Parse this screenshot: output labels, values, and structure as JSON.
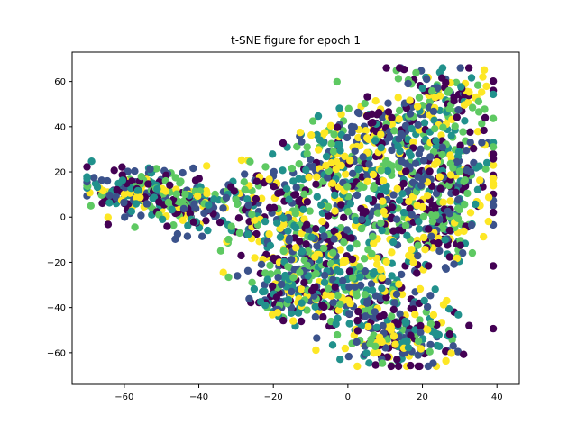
{
  "chart_data": {
    "type": "scatter",
    "title": "t-SNE figure for epoch 1",
    "xlabel": "",
    "ylabel": "",
    "xlim": [
      -74,
      46
    ],
    "ylim": [
      -74,
      73
    ],
    "xticks": [
      -60,
      -40,
      -20,
      0,
      20,
      40
    ],
    "yticks": [
      -60,
      -40,
      -20,
      0,
      20,
      40,
      60
    ],
    "grid": false,
    "colormap": [
      "#440154",
      "#3b528b",
      "#21918c",
      "#5ec962",
      "#fde725"
    ],
    "point_count": 2000,
    "clusters": [
      {
        "center": [
          -58,
          12
        ],
        "spread": [
          7,
          5
        ],
        "weight": 0.08
      },
      {
        "center": [
          -44,
          6
        ],
        "spread": [
          6,
          6
        ],
        "weight": 0.06
      },
      {
        "center": [
          -25,
          4
        ],
        "spread": [
          8,
          10
        ],
        "weight": 0.07
      },
      {
        "center": [
          -5,
          22
        ],
        "spread": [
          8,
          12
        ],
        "weight": 0.08
      },
      {
        "center": [
          10,
          35
        ],
        "spread": [
          8,
          8
        ],
        "weight": 0.07
      },
      {
        "center": [
          25,
          52
        ],
        "spread": [
          7,
          8
        ],
        "weight": 0.07
      },
      {
        "center": [
          28,
          20
        ],
        "spread": [
          8,
          12
        ],
        "weight": 0.09
      },
      {
        "center": [
          10,
          5
        ],
        "spread": [
          10,
          10
        ],
        "weight": 0.08
      },
      {
        "center": [
          -8,
          -15
        ],
        "spread": [
          8,
          10
        ],
        "weight": 0.1
      },
      {
        "center": [
          5,
          -35
        ],
        "spread": [
          9,
          10
        ],
        "weight": 0.1
      },
      {
        "center": [
          15,
          -55
        ],
        "spread": [
          7,
          7
        ],
        "weight": 0.08
      },
      {
        "center": [
          25,
          -5
        ],
        "spread": [
          7,
          8
        ],
        "weight": 0.06
      },
      {
        "center": [
          -15,
          -35
        ],
        "spread": [
          6,
          6
        ],
        "weight": 0.06
      }
    ]
  }
}
